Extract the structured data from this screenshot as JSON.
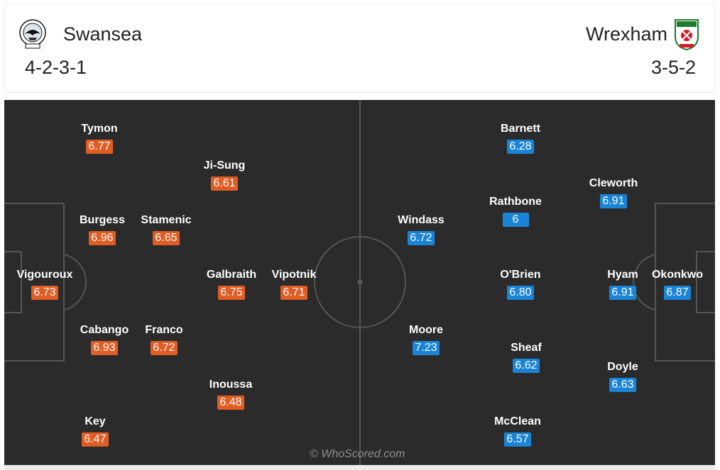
{
  "home": {
    "name": "Swansea",
    "formation": "4-2-3-1",
    "crest_icon": "swansea-crest-icon",
    "color": "#e05d23",
    "players": [
      {
        "name": "Tymon",
        "rating": "6.77"
      },
      {
        "name": "Ji-Sung",
        "rating": "6.61"
      },
      {
        "name": "Burgess",
        "rating": "6.96"
      },
      {
        "name": "Stamenic",
        "rating": "6.65"
      },
      {
        "name": "Vigouroux",
        "rating": "6.73"
      },
      {
        "name": "Galbraith",
        "rating": "6.75"
      },
      {
        "name": "Vipotnik",
        "rating": "6.71"
      },
      {
        "name": "Cabango",
        "rating": "6.93"
      },
      {
        "name": "Franco",
        "rating": "6.72"
      },
      {
        "name": "Inoussa",
        "rating": "6.48"
      },
      {
        "name": "Key",
        "rating": "6.47"
      }
    ]
  },
  "away": {
    "name": "Wrexham",
    "formation": "3-5-2",
    "crest_icon": "wrexham-crest-icon",
    "color": "#1a84d6",
    "players": [
      {
        "name": "Barnett",
        "rating": "6.28"
      },
      {
        "name": "Cleworth",
        "rating": "6.91"
      },
      {
        "name": "Rathbone",
        "rating": "6"
      },
      {
        "name": "Windass",
        "rating": "6.72"
      },
      {
        "name": "O'Brien",
        "rating": "6.80"
      },
      {
        "name": "Hyam",
        "rating": "6.91"
      },
      {
        "name": "Okonkwo",
        "rating": "6.87"
      },
      {
        "name": "Moore",
        "rating": "7.23"
      },
      {
        "name": "Sheaf",
        "rating": "6.62"
      },
      {
        "name": "Doyle",
        "rating": "6.63"
      },
      {
        "name": "McClean",
        "rating": "6.57"
      }
    ]
  },
  "watermark": "© WhoScored.com"
}
